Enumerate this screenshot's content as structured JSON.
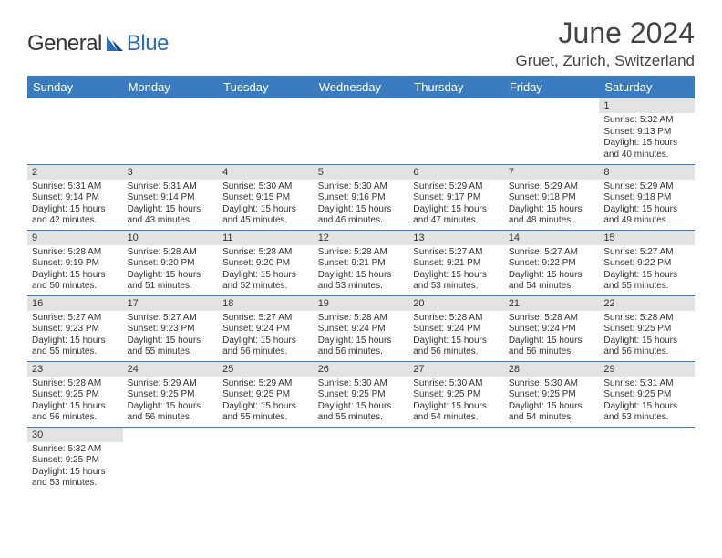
{
  "brand": {
    "word1": "General",
    "word2": "Blue"
  },
  "title": "June 2024",
  "location": "Gruet, Zurich, Switzerland",
  "colors": {
    "header_bg": "#3b7bbf",
    "header_text": "#ffffff",
    "daynum_bg": "#e3e3e3",
    "border": "#3b7bbf",
    "brand_blue": "#2a6db8",
    "text": "#333333"
  },
  "weekdays": [
    "Sunday",
    "Monday",
    "Tuesday",
    "Wednesday",
    "Thursday",
    "Friday",
    "Saturday"
  ],
  "weeks": [
    [
      null,
      null,
      null,
      null,
      null,
      null,
      {
        "n": "1",
        "sr": "Sunrise: 5:32 AM",
        "ss": "Sunset: 9:13 PM",
        "d1": "Daylight: 15 hours",
        "d2": "and 40 minutes."
      }
    ],
    [
      {
        "n": "2",
        "sr": "Sunrise: 5:31 AM",
        "ss": "Sunset: 9:14 PM",
        "d1": "Daylight: 15 hours",
        "d2": "and 42 minutes."
      },
      {
        "n": "3",
        "sr": "Sunrise: 5:31 AM",
        "ss": "Sunset: 9:14 PM",
        "d1": "Daylight: 15 hours",
        "d2": "and 43 minutes."
      },
      {
        "n": "4",
        "sr": "Sunrise: 5:30 AM",
        "ss": "Sunset: 9:15 PM",
        "d1": "Daylight: 15 hours",
        "d2": "and 45 minutes."
      },
      {
        "n": "5",
        "sr": "Sunrise: 5:30 AM",
        "ss": "Sunset: 9:16 PM",
        "d1": "Daylight: 15 hours",
        "d2": "and 46 minutes."
      },
      {
        "n": "6",
        "sr": "Sunrise: 5:29 AM",
        "ss": "Sunset: 9:17 PM",
        "d1": "Daylight: 15 hours",
        "d2": "and 47 minutes."
      },
      {
        "n": "7",
        "sr": "Sunrise: 5:29 AM",
        "ss": "Sunset: 9:18 PM",
        "d1": "Daylight: 15 hours",
        "d2": "and 48 minutes."
      },
      {
        "n": "8",
        "sr": "Sunrise: 5:29 AM",
        "ss": "Sunset: 9:18 PM",
        "d1": "Daylight: 15 hours",
        "d2": "and 49 minutes."
      }
    ],
    [
      {
        "n": "9",
        "sr": "Sunrise: 5:28 AM",
        "ss": "Sunset: 9:19 PM",
        "d1": "Daylight: 15 hours",
        "d2": "and 50 minutes."
      },
      {
        "n": "10",
        "sr": "Sunrise: 5:28 AM",
        "ss": "Sunset: 9:20 PM",
        "d1": "Daylight: 15 hours",
        "d2": "and 51 minutes."
      },
      {
        "n": "11",
        "sr": "Sunrise: 5:28 AM",
        "ss": "Sunset: 9:20 PM",
        "d1": "Daylight: 15 hours",
        "d2": "and 52 minutes."
      },
      {
        "n": "12",
        "sr": "Sunrise: 5:28 AM",
        "ss": "Sunset: 9:21 PM",
        "d1": "Daylight: 15 hours",
        "d2": "and 53 minutes."
      },
      {
        "n": "13",
        "sr": "Sunrise: 5:27 AM",
        "ss": "Sunset: 9:21 PM",
        "d1": "Daylight: 15 hours",
        "d2": "and 53 minutes."
      },
      {
        "n": "14",
        "sr": "Sunrise: 5:27 AM",
        "ss": "Sunset: 9:22 PM",
        "d1": "Daylight: 15 hours",
        "d2": "and 54 minutes."
      },
      {
        "n": "15",
        "sr": "Sunrise: 5:27 AM",
        "ss": "Sunset: 9:22 PM",
        "d1": "Daylight: 15 hours",
        "d2": "and 55 minutes."
      }
    ],
    [
      {
        "n": "16",
        "sr": "Sunrise: 5:27 AM",
        "ss": "Sunset: 9:23 PM",
        "d1": "Daylight: 15 hours",
        "d2": "and 55 minutes."
      },
      {
        "n": "17",
        "sr": "Sunrise: 5:27 AM",
        "ss": "Sunset: 9:23 PM",
        "d1": "Daylight: 15 hours",
        "d2": "and 55 minutes."
      },
      {
        "n": "18",
        "sr": "Sunrise: 5:27 AM",
        "ss": "Sunset: 9:24 PM",
        "d1": "Daylight: 15 hours",
        "d2": "and 56 minutes."
      },
      {
        "n": "19",
        "sr": "Sunrise: 5:28 AM",
        "ss": "Sunset: 9:24 PM",
        "d1": "Daylight: 15 hours",
        "d2": "and 56 minutes."
      },
      {
        "n": "20",
        "sr": "Sunrise: 5:28 AM",
        "ss": "Sunset: 9:24 PM",
        "d1": "Daylight: 15 hours",
        "d2": "and 56 minutes."
      },
      {
        "n": "21",
        "sr": "Sunrise: 5:28 AM",
        "ss": "Sunset: 9:24 PM",
        "d1": "Daylight: 15 hours",
        "d2": "and 56 minutes."
      },
      {
        "n": "22",
        "sr": "Sunrise: 5:28 AM",
        "ss": "Sunset: 9:25 PM",
        "d1": "Daylight: 15 hours",
        "d2": "and 56 minutes."
      }
    ],
    [
      {
        "n": "23",
        "sr": "Sunrise: 5:28 AM",
        "ss": "Sunset: 9:25 PM",
        "d1": "Daylight: 15 hours",
        "d2": "and 56 minutes."
      },
      {
        "n": "24",
        "sr": "Sunrise: 5:29 AM",
        "ss": "Sunset: 9:25 PM",
        "d1": "Daylight: 15 hours",
        "d2": "and 56 minutes."
      },
      {
        "n": "25",
        "sr": "Sunrise: 5:29 AM",
        "ss": "Sunset: 9:25 PM",
        "d1": "Daylight: 15 hours",
        "d2": "and 55 minutes."
      },
      {
        "n": "26",
        "sr": "Sunrise: 5:30 AM",
        "ss": "Sunset: 9:25 PM",
        "d1": "Daylight: 15 hours",
        "d2": "and 55 minutes."
      },
      {
        "n": "27",
        "sr": "Sunrise: 5:30 AM",
        "ss": "Sunset: 9:25 PM",
        "d1": "Daylight: 15 hours",
        "d2": "and 54 minutes."
      },
      {
        "n": "28",
        "sr": "Sunrise: 5:30 AM",
        "ss": "Sunset: 9:25 PM",
        "d1": "Daylight: 15 hours",
        "d2": "and 54 minutes."
      },
      {
        "n": "29",
        "sr": "Sunrise: 5:31 AM",
        "ss": "Sunset: 9:25 PM",
        "d1": "Daylight: 15 hours",
        "d2": "and 53 minutes."
      }
    ],
    [
      {
        "n": "30",
        "sr": "Sunrise: 5:32 AM",
        "ss": "Sunset: 9:25 PM",
        "d1": "Daylight: 15 hours",
        "d2": "and 53 minutes."
      },
      null,
      null,
      null,
      null,
      null,
      null
    ]
  ]
}
